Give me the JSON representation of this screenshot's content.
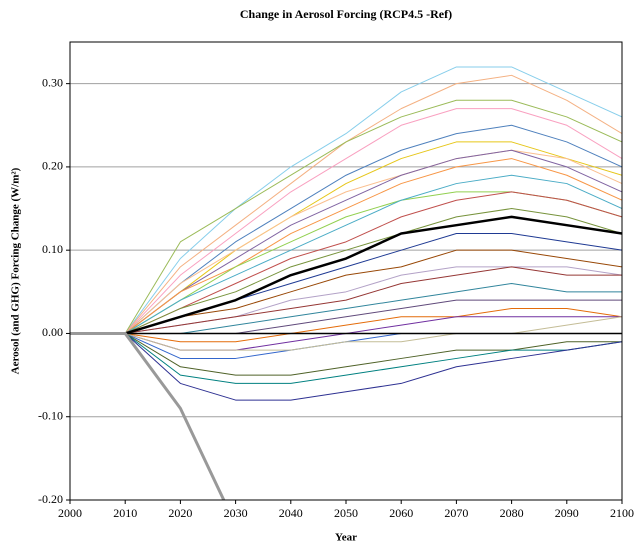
{
  "chart_data": {
    "type": "line",
    "title": "Change in Aerosol Forcing (RCP4.5 -Ref)",
    "x_label": "Year",
    "y_label": "Aerosol (and GHG) Forcing Change (W/m²)",
    "x": [
      2000,
      2010,
      2020,
      2030,
      2040,
      2050,
      2060,
      2070,
      2080,
      2090,
      2100
    ],
    "xlim": [
      2000,
      2100
    ],
    "xticks": [
      2000,
      2010,
      2020,
      2030,
      2040,
      2050,
      2060,
      2070,
      2080,
      2090,
      2100
    ],
    "ylim": [
      -0.2,
      0.35
    ],
    "yticks": [
      {
        "value": -0.2,
        "label": "-0.20"
      },
      {
        "value": -0.1,
        "label": "-0.10"
      },
      {
        "value": 0,
        "label": "0.00"
      },
      {
        "value": 0.1,
        "label": "0.10"
      },
      {
        "value": 0.2,
        "label": "0.20"
      },
      {
        "value": 0.3,
        "label": "0.30"
      }
    ],
    "grid": true,
    "series": [
      {
        "color": "#87ceeb",
        "values": [
          0,
          0,
          0.09,
          0.15,
          0.2,
          0.24,
          0.29,
          0.32,
          0.32,
          0.29,
          0.26
        ]
      },
      {
        "color": "#f4b183",
        "values": [
          0,
          0,
          0.08,
          0.13,
          0.18,
          0.23,
          0.27,
          0.3,
          0.31,
          0.28,
          0.24
        ]
      },
      {
        "color": "#9bbb59",
        "values": [
          0,
          0,
          0.11,
          0.15,
          0.19,
          0.23,
          0.26,
          0.28,
          0.28,
          0.26,
          0.23
        ]
      },
      {
        "color": "#f9a0c0",
        "values": [
          0,
          0,
          0.07,
          0.12,
          0.17,
          0.21,
          0.25,
          0.27,
          0.27,
          0.25,
          0.21
        ]
      },
      {
        "color": "#4f81bd",
        "values": [
          0,
          0,
          0.06,
          0.11,
          0.15,
          0.19,
          0.22,
          0.24,
          0.25,
          0.23,
          0.2
        ]
      },
      {
        "color": "#e6c619",
        "values": [
          0,
          0,
          0.05,
          0.1,
          0.14,
          0.18,
          0.21,
          0.23,
          0.23,
          0.21,
          0.19
        ]
      },
      {
        "color": "#fabf8f",
        "values": [
          0,
          0,
          0.06,
          0.1,
          0.14,
          0.17,
          0.19,
          0.21,
          0.22,
          0.21,
          0.18
        ]
      },
      {
        "color": "#8064a2",
        "values": [
          0,
          0,
          0.05,
          0.09,
          0.13,
          0.16,
          0.19,
          0.21,
          0.22,
          0.2,
          0.17
        ]
      },
      {
        "color": "#f79646",
        "values": [
          0,
          0,
          0.05,
          0.08,
          0.12,
          0.15,
          0.18,
          0.2,
          0.21,
          0.19,
          0.16
        ]
      },
      {
        "color": "#92d050",
        "values": [
          0,
          0,
          0.04,
          0.08,
          0.11,
          0.14,
          0.16,
          0.17,
          0.17,
          0.16,
          0.14
        ]
      },
      {
        "color": "#4bacc6",
        "values": [
          0,
          0,
          0.04,
          0.07,
          0.1,
          0.13,
          0.16,
          0.18,
          0.19,
          0.18,
          0.15
        ]
      },
      {
        "color": "#c0504d",
        "values": [
          0,
          0,
          0.03,
          0.06,
          0.09,
          0.11,
          0.14,
          0.16,
          0.17,
          0.16,
          0.14
        ]
      },
      {
        "color": "#77933c",
        "values": [
          0,
          0,
          0.03,
          0.05,
          0.08,
          0.1,
          0.12,
          0.14,
          0.15,
          0.14,
          0.12
        ]
      },
      {
        "color": "#1f3a93",
        "values": [
          0,
          0,
          0.02,
          0.04,
          0.06,
          0.08,
          0.1,
          0.12,
          0.12,
          0.11,
          0.1
        ]
      },
      {
        "color": "#984807",
        "values": [
          0,
          0,
          0.02,
          0.03,
          0.05,
          0.07,
          0.08,
          0.1,
          0.1,
          0.09,
          0.08
        ]
      },
      {
        "color": "#b3a2c7",
        "values": [
          0,
          0,
          0.01,
          0.02,
          0.04,
          0.05,
          0.07,
          0.08,
          0.08,
          0.08,
          0.07
        ]
      },
      {
        "color": "#953735",
        "values": [
          0,
          0,
          0.01,
          0.02,
          0.03,
          0.04,
          0.06,
          0.07,
          0.08,
          0.07,
          0.07
        ]
      },
      {
        "color": "#31859c",
        "values": [
          0,
          0,
          0.0,
          0.01,
          0.02,
          0.03,
          0.04,
          0.05,
          0.06,
          0.05,
          0.05
        ]
      },
      {
        "color": "#604a7b",
        "values": [
          0,
          0,
          0.0,
          0.0,
          0.01,
          0.02,
          0.03,
          0.04,
          0.04,
          0.04,
          0.04
        ]
      },
      {
        "color": "#e46c0a",
        "values": [
          0,
          0,
          -0.01,
          -0.01,
          0.0,
          0.01,
          0.02,
          0.02,
          0.03,
          0.03,
          0.02
        ]
      },
      {
        "color": "#7030a0",
        "values": [
          0,
          0,
          -0.02,
          -0.02,
          -0.01,
          0.0,
          0.01,
          0.02,
          0.02,
          0.02,
          0.02
        ]
      },
      {
        "color": "#3366cc",
        "values": [
          0,
          0,
          -0.03,
          -0.03,
          -0.02,
          -0.01,
          0.0,
          0.0,
          0.0,
          0.0,
          0.0
        ]
      },
      {
        "color": "#c4bd97",
        "values": [
          0,
          0,
          -0.02,
          -0.02,
          -0.02,
          -0.01,
          -0.01,
          0.0,
          0.0,
          0.01,
          0.02
        ]
      },
      {
        "color": "#4f6228",
        "values": [
          0,
          0,
          -0.04,
          -0.05,
          -0.05,
          -0.04,
          -0.03,
          -0.02,
          -0.02,
          -0.01,
          -0.01
        ]
      },
      {
        "color": "#008080",
        "values": [
          0,
          0,
          -0.05,
          -0.06,
          -0.06,
          -0.05,
          -0.04,
          -0.03,
          -0.02,
          -0.02,
          -0.01
        ]
      },
      {
        "color": "#2e3192",
        "values": [
          0,
          0,
          -0.06,
          -0.08,
          -0.08,
          -0.07,
          -0.06,
          -0.04,
          -0.03,
          -0.02,
          -0.01
        ]
      },
      {
        "color": "#000000",
        "line_width": 1.5,
        "values": [
          0,
          0,
          0,
          0,
          0,
          0,
          0,
          0,
          0,
          0,
          0
        ]
      },
      {
        "color": "#000000",
        "line_width": 2.5,
        "values": [
          0,
          0,
          0.02,
          0.04,
          0.07,
          0.09,
          0.12,
          0.13,
          0.14,
          0.13,
          0.12
        ]
      },
      {
        "color": "#999999",
        "line_width": 3,
        "values": [
          0,
          0,
          -0.09,
          -0.23,
          null,
          null,
          null,
          null,
          null,
          null,
          null
        ]
      }
    ]
  }
}
